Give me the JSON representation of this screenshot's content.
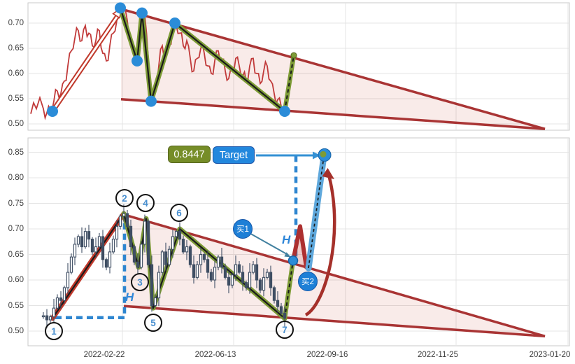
{
  "x_axis": {
    "ticks": [
      "2022-02-22",
      "2022-06-13",
      "2022-09-16",
      "2022-11-25",
      "2023-01-20"
    ]
  },
  "top_panel": {
    "y_ticks": [
      "0.70",
      "0.65",
      "0.60",
      "0.55",
      "0.50"
    ]
  },
  "bottom_panel": {
    "y_ticks": [
      "0.85",
      "0.80",
      "0.75",
      "0.70",
      "0.65",
      "0.60",
      "0.55",
      "0.50"
    ]
  },
  "annotations": {
    "target_price": "0.8447",
    "target_label": "Target",
    "buy1_label": "买1",
    "buy2_label": "买2",
    "height_label_1": "H",
    "height_label_2": "H",
    "wave_labels": [
      "1",
      "2",
      "3",
      "4",
      "5",
      "6",
      "7"
    ]
  },
  "colors": {
    "candle": "#3f4e63",
    "price_line": "#c13a3a",
    "trend_red": "#c0392b",
    "wedge": "#a93434",
    "wedge_fill": "rgba(192,57,43,0.10)",
    "zigzag_green": "#7d9b36",
    "dashed_blue": "#2e86d0",
    "dot_blue": "#2b8cd8",
    "band_blue": "#5fa8dc",
    "arc_red": "#a5302a",
    "number_blue": "#4a90d0",
    "pointer_blue": "#41809f",
    "target_box": "#2287dd",
    "price_box": "#768d28"
  },
  "chart_data": {
    "type": "candlestick",
    "panels": [
      {
        "name": "overview",
        "type": "line",
        "ylim": [
          0.47,
          0.735
        ],
        "y_ticks": [
          0.7,
          0.65,
          0.6,
          0.55,
          0.5
        ],
        "grid": true
      },
      {
        "name": "main",
        "type": "candlestick",
        "ylim": [
          0.47,
          0.87
        ],
        "y_ticks": [
          0.85,
          0.8,
          0.75,
          0.7,
          0.65,
          0.6,
          0.55,
          0.5
        ],
        "grid": true
      }
    ],
    "x_ticks": [
      "2022-02-22",
      "2022-06-13",
      "2022-09-16",
      "2022-11-25",
      "2023-01-20"
    ],
    "closes": [
      0.53,
      0.522,
      0.528,
      0.545,
      0.565,
      0.56,
      0.585,
      0.615,
      0.645,
      0.67,
      0.685,
      0.665,
      0.695,
      0.68,
      0.655,
      0.665,
      0.685,
      0.64,
      0.625,
      0.655,
      0.68,
      0.705,
      0.725,
      0.73,
      0.705,
      0.665,
      0.635,
      0.625,
      0.67,
      0.715,
      0.63,
      0.55,
      0.565,
      0.615,
      0.655,
      0.63,
      0.66,
      0.685,
      0.695,
      0.68,
      0.655,
      0.665,
      0.63,
      0.605,
      0.63,
      0.65,
      0.64,
      0.615,
      0.6,
      0.625,
      0.645,
      0.625,
      0.605,
      0.59,
      0.61,
      0.63,
      0.615,
      0.595,
      0.585,
      0.615,
      0.63,
      0.6,
      0.58,
      0.605,
      0.615,
      0.585,
      0.56,
      0.548,
      0.535,
      0.525
    ],
    "pattern_points": [
      {
        "label": "1",
        "value": 0.525
      },
      {
        "label": "2",
        "value": 0.73
      },
      {
        "label": "3",
        "value": 0.625
      },
      {
        "label": "4",
        "value": 0.72
      },
      {
        "label": "5",
        "value": 0.545
      },
      {
        "label": "6",
        "value": 0.7
      },
      {
        "label": "7",
        "value": 0.525
      }
    ],
    "breakout": {
      "entry": 0.638,
      "peak": 0.705,
      "pullback": 0.625
    },
    "target_value": 0.8447,
    "falling_wedge": {
      "upper_start": 0.728,
      "lower_start": 0.549,
      "apex_value": 0.49
    }
  }
}
